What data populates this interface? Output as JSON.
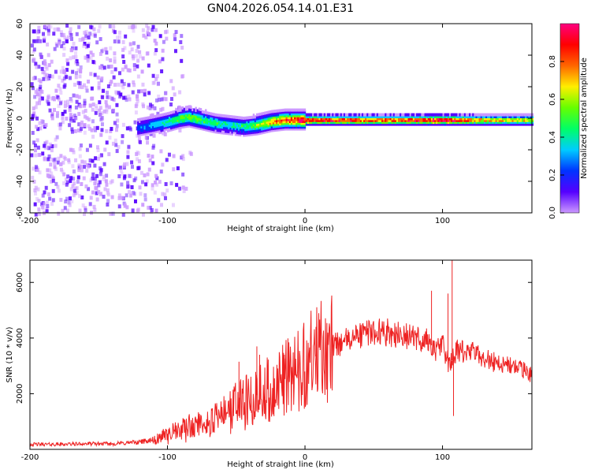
{
  "title": "GN04.2026.054.14.01.E31",
  "chart_data": [
    {
      "type": "heatmap",
      "xlabel": "Height of straight line (km)",
      "ylabel": "Frequency (Hz)",
      "xlim": [
        -200,
        165
      ],
      "ylim": [
        -60,
        60
      ],
      "xticks": [
        -200,
        -100,
        0,
        100
      ],
      "yticks": [
        60,
        40,
        20,
        0,
        -20,
        -40,
        -60
      ],
      "colorbar": {
        "label": "Normalized spectral amplitude",
        "range": [
          0,
          1
        ],
        "ticks": [
          0.0,
          0.2,
          0.4,
          0.6,
          0.8
        ],
        "colormap": [
          "#cc99ff",
          "#5500ff",
          "#0033ff",
          "#00ccff",
          "#00ff66",
          "#66ff00",
          "#ffee00",
          "#ff6600",
          "#ff0000",
          "#ff0080"
        ]
      },
      "noise_region_km": [
        -200,
        -78
      ],
      "ridge": {
        "x": [
          -122,
          -110,
          -100,
          -92,
          -85,
          -75,
          -65,
          -55,
          -45,
          -35,
          -25,
          -15,
          0,
          20,
          50,
          80,
          100,
          130,
          165
        ],
        "freq": [
          -5,
          -3,
          -1,
          1,
          2,
          0,
          -2,
          -3,
          -4,
          -3,
          -1,
          0,
          0,
          0,
          0,
          0,
          0,
          0,
          0
        ],
        "amplitude": [
          0.25,
          0.35,
          0.45,
          0.5,
          0.55,
          0.5,
          0.45,
          0.4,
          0.45,
          0.55,
          0.7,
          0.8,
          0.9,
          0.85,
          0.8,
          0.85,
          0.95,
          0.7,
          0.65
        ]
      }
    },
    {
      "type": "line",
      "xlabel": "Height of straight line (km)",
      "ylabel": "SNR (10 * v/v)",
      "xlim": [
        -200,
        165
      ],
      "ylim": [
        0,
        6800
      ],
      "xticks": [
        -200,
        -100,
        0,
        100
      ],
      "yticks": [
        2000,
        4000,
        6000
      ],
      "color": "#ee2222",
      "series": [
        {
          "name": "SNR",
          "x": [
            -200,
            -180,
            -160,
            -140,
            -120,
            -110,
            -100,
            -90,
            -80,
            -70,
            -60,
            -50,
            -40,
            -30,
            -20,
            -10,
            0,
            10,
            20,
            30,
            40,
            50,
            60,
            70,
            80,
            90,
            95,
            100,
            105,
            110,
            120,
            130,
            140,
            150,
            165
          ],
          "y": [
            180,
            180,
            200,
            200,
            260,
            350,
            550,
            700,
            900,
            950,
            1200,
            1600,
            1800,
            2100,
            2300,
            2800,
            3100,
            3400,
            3700,
            3900,
            4100,
            4250,
            4200,
            4100,
            4000,
            3900,
            3500,
            3800,
            3000,
            3500,
            3500,
            3300,
            3100,
            3000,
            2700
          ],
          "spikes": [
            {
              "x": -48,
              "y": 3150
            },
            {
              "x": -35,
              "y": 3700
            },
            {
              "x": -33,
              "y": 3400
            },
            {
              "x": -15,
              "y": 3400
            },
            {
              "x": 8,
              "y": 4400
            },
            {
              "x": 107,
              "y": 6800
            },
            {
              "x": 104,
              "y": 5600
            },
            {
              "x": 92,
              "y": 5700
            },
            {
              "x": 108,
              "y": 1200
            }
          ]
        }
      ]
    }
  ]
}
